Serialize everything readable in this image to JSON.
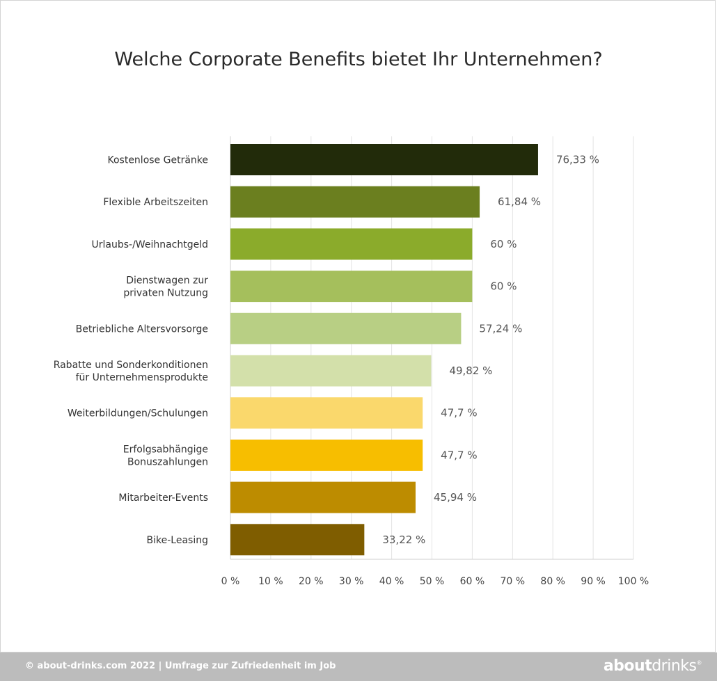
{
  "chart_data": {
    "type": "bar",
    "orientation": "horizontal",
    "title": "Welche Corporate Benefits bietet Ihr Unternehmen?",
    "categories": [
      [
        "Kostenlose Getränke"
      ],
      [
        "Flexible Arbeitszeiten"
      ],
      [
        "Urlaubs-/Weihnachtgeld"
      ],
      [
        "Dienstwagen zur",
        "privaten Nutzung"
      ],
      [
        "Betriebliche Altersvorsorge"
      ],
      [
        "Rabatte und Sonderkonditionen",
        "für Unternehmensprodukte"
      ],
      [
        "Weiterbildungen/Schulungen"
      ],
      [
        "Erfolgsabhängige",
        "Bonuszahlungen"
      ],
      [
        "Mitarbeiter-Events"
      ],
      [
        "Bike-Leasing"
      ]
    ],
    "values": [
      76.33,
      61.84,
      60,
      60,
      57.24,
      49.82,
      47.7,
      47.7,
      45.94,
      33.22
    ],
    "value_labels": [
      "76,33 %",
      "61,84 %",
      "60 %",
      "60 %",
      "57,24 %",
      "49,82 %",
      "47,7 %",
      "47,7 %",
      "45,94 %",
      "33,22 %"
    ],
    "colors": [
      "#222b0a",
      "#6b7f1f",
      "#8bab2b",
      "#a5bf5c",
      "#b8cf84",
      "#d3e0aa",
      "#fad86c",
      "#f7be00",
      "#bd8c00",
      "#7f5d00"
    ],
    "xlim": [
      0,
      100
    ],
    "xticks": [
      0,
      10,
      20,
      30,
      40,
      50,
      60,
      70,
      80,
      90,
      100
    ],
    "xtick_labels": [
      "0 %",
      "10 %",
      "20 %",
      "30 %",
      "40 %",
      "50 %",
      "60 %",
      "70 %",
      "80 %",
      "90 %",
      "100 %"
    ],
    "grid": true,
    "legend": "none"
  },
  "footer": {
    "source": "© about-drinks.com 2022  |  Umfrage zur Zufriedenheit im Job",
    "logo_bold": "about",
    "logo_light": "drinks",
    "logo_mark": "®"
  }
}
